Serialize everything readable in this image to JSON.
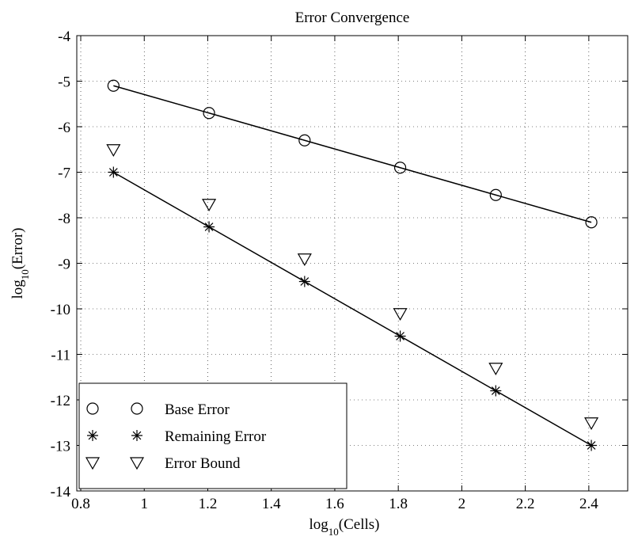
{
  "chart_data": {
    "type": "line",
    "title": "Error Convergence",
    "xlabel": [
      "log",
      "10",
      "(Cells)"
    ],
    "ylabel": [
      "log",
      "10",
      "(Error)"
    ],
    "x": [
      0.903,
      1.204,
      1.505,
      1.806,
      2.107,
      2.408
    ],
    "series": [
      {
        "name": "Base Error",
        "color": "#000000",
        "marker": "circle",
        "line": true,
        "values": [
          -5.1,
          -5.7,
          -6.3,
          -6.9,
          -7.5,
          -8.1
        ]
      },
      {
        "name": "Remaining Error",
        "color": "#000000",
        "marker": "asterisk",
        "line": true,
        "values": [
          -7,
          -8.2,
          -9.4,
          -10.6,
          -11.8,
          -13
        ]
      },
      {
        "name": "Error Bound",
        "color": "#000000",
        "marker": "triangle-down",
        "line": false,
        "values": [
          -6.5,
          -7.7,
          -8.9,
          -10.1,
          -11.3,
          -12.5
        ]
      }
    ],
    "xlim": [
      0.7875,
      2.5225
    ],
    "xticks": [
      0.8,
      1,
      1.2,
      1.4,
      1.6,
      1.8,
      2,
      2.2,
      2.4
    ],
    "ylim": [
      -14,
      -4
    ],
    "yticks": [
      -14,
      -13,
      -12,
      -11,
      -10,
      -9,
      -8,
      -7,
      -6,
      -5,
      -4
    ],
    "grid": true,
    "legend": "lower left"
  }
}
